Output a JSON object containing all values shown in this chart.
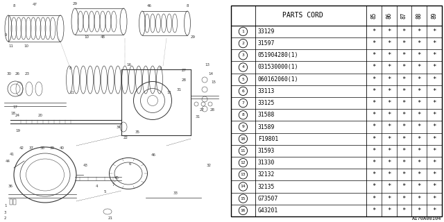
{
  "diagram_code": "A170A00104",
  "table_header": "PARTS CORD",
  "year_cols": [
    "85",
    "86",
    "87",
    "88",
    "89"
  ],
  "parts": [
    {
      "num": 1,
      "code": "33129"
    },
    {
      "num": 2,
      "code": "31597"
    },
    {
      "num": 3,
      "code": "051904280(1)"
    },
    {
      "num": 4,
      "code": "031530000(1)"
    },
    {
      "num": 5,
      "code": "060162060(1)"
    },
    {
      "num": 6,
      "code": "33113"
    },
    {
      "num": 7,
      "code": "33125"
    },
    {
      "num": 8,
      "code": "31588"
    },
    {
      "num": 9,
      "code": "31589"
    },
    {
      "num": 10,
      "code": "F19801"
    },
    {
      "num": 11,
      "code": "31593"
    },
    {
      "num": 12,
      "code": "31330"
    },
    {
      "num": 13,
      "code": "32132"
    },
    {
      "num": 14,
      "code": "32135"
    },
    {
      "num": 15,
      "code": "G73507"
    },
    {
      "num": 16,
      "code": "G43201"
    }
  ],
  "bg_color": "#ffffff",
  "lc": "#333333",
  "lc2": "#555555",
  "lw": 0.5,
  "lw2": 0.8
}
